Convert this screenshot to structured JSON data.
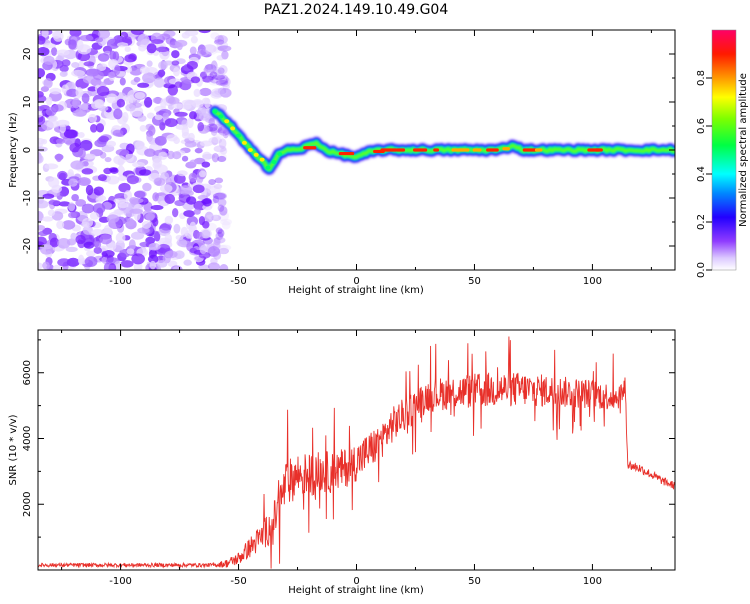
{
  "title": "PAZ1.2024.149.10.49.G04",
  "chart_data": [
    {
      "type": "heatmap",
      "xlabel": "Height of straight line (km)",
      "ylabel": "Frequency (Hz)",
      "xlim": [
        -135,
        135
      ],
      "ylim": [
        -25,
        25
      ],
      "xticks": [
        -100,
        -50,
        0,
        50,
        100
      ],
      "yticks": [
        -20,
        -10,
        0,
        10,
        20
      ],
      "colorbar": {
        "label": "Normalized spectral amplitude",
        "range": [
          0,
          1
        ],
        "ticks": [
          0.0,
          0.2,
          0.4,
          0.6,
          0.8
        ]
      },
      "ridge": {
        "x": [
          -60,
          -55,
          -50,
          -45,
          -40,
          -37,
          -33,
          -30,
          -25,
          -20,
          -17,
          -13,
          -10,
          -5,
          0,
          5,
          10,
          20,
          30,
          40,
          50,
          60,
          67,
          70,
          80,
          90,
          100,
          110,
          120,
          135
        ],
        "y": [
          8,
          6,
          3,
          0,
          -2,
          -4,
          -1,
          0,
          0,
          1,
          1.5,
          0,
          -0.5,
          -1,
          -1.5,
          -0.5,
          0,
          0,
          0,
          0,
          0,
          0,
          1,
          0,
          0,
          0,
          0,
          0,
          0,
          0
        ]
      }
    },
    {
      "type": "line",
      "xlabel": "Height of straight line (km)",
      "ylabel": "SNR (10 * v/v)",
      "xlim": [
        -135,
        135
      ],
      "ylim": [
        0,
        7300
      ],
      "xticks": [
        -100,
        -50,
        0,
        50,
        100
      ],
      "yticks": [
        2000,
        4000,
        6000
      ],
      "color": "#e8302a",
      "envelope": {
        "x": [
          -135,
          -100,
          -60,
          -55,
          -50,
          -45,
          -40,
          -35,
          -30,
          -25,
          -20,
          -15,
          -10,
          -5,
          0,
          5,
          10,
          15,
          20,
          25,
          30,
          40,
          50,
          60,
          70,
          80,
          90,
          100,
          110,
          114,
          115,
          120,
          125,
          130,
          135
        ],
        "y": [
          150,
          150,
          150,
          200,
          350,
          700,
          1000,
          1500,
          2600,
          2900,
          2900,
          3000,
          2950,
          3100,
          3300,
          3600,
          3900,
          4400,
          4700,
          5000,
          5300,
          5400,
          5450,
          5500,
          5500,
          5450,
          5400,
          5350,
          5250,
          5500,
          3200,
          3100,
          2900,
          2700,
          2550
        ]
      },
      "noise": {
        "x": [
          -135,
          -60,
          -50,
          -40,
          -30,
          0,
          30,
          60,
          100,
          114,
          115,
          135
        ],
        "amplitude": [
          60,
          60,
          200,
          450,
          700,
          600,
          500,
          550,
          450,
          400,
          150,
          120
        ]
      }
    }
  ]
}
